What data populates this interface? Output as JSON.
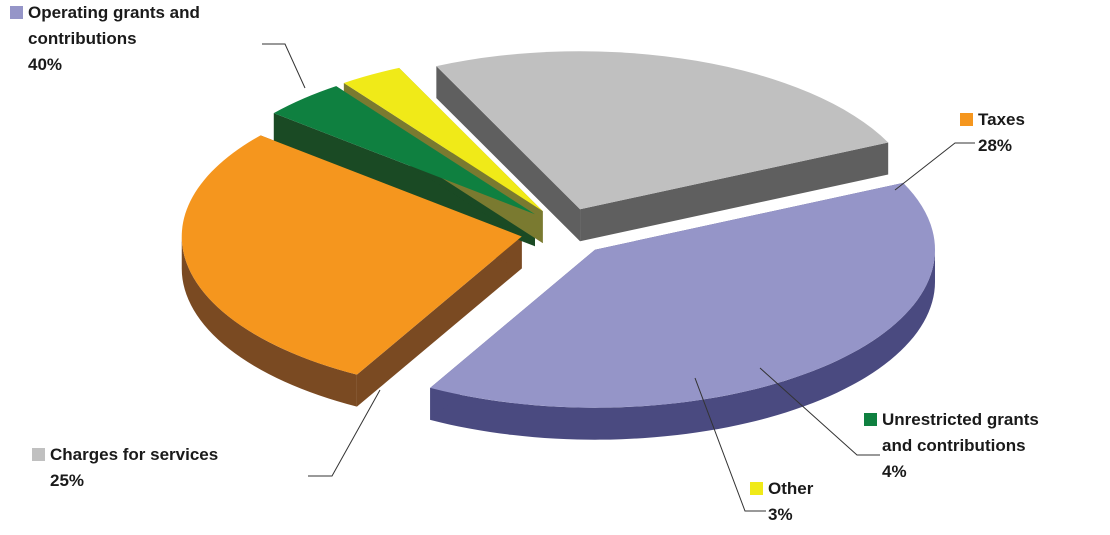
{
  "chart_data": {
    "type": "pie",
    "style": "3d-exploded",
    "title": "",
    "categories": [
      "Operating grants and contributions",
      "Taxes",
      "Unrestricted grants and contributions",
      "Other",
      "Charges for services"
    ],
    "values": [
      40,
      28,
      4,
      3,
      25
    ],
    "value_labels": [
      "40%",
      "28%",
      "4%",
      "3%",
      "25%"
    ],
    "label_lines": [
      [
        "Operating grants and",
        "contributions"
      ],
      [
        "Taxes"
      ],
      [
        "Unrestricted grants",
        "and contributions"
      ],
      [
        "Other"
      ],
      [
        "Charges for services"
      ]
    ],
    "colors": [
      "#9595c8",
      "#f5961e",
      "#0f8040",
      "#f0ea18",
      "#c0c0c0"
    ],
    "side_colors": [
      "#4a4a80",
      "#7a4a22",
      "#1a4a24",
      "#7a7a30",
      "#5f5f5f"
    ],
    "legend": "inline-with-labels"
  }
}
